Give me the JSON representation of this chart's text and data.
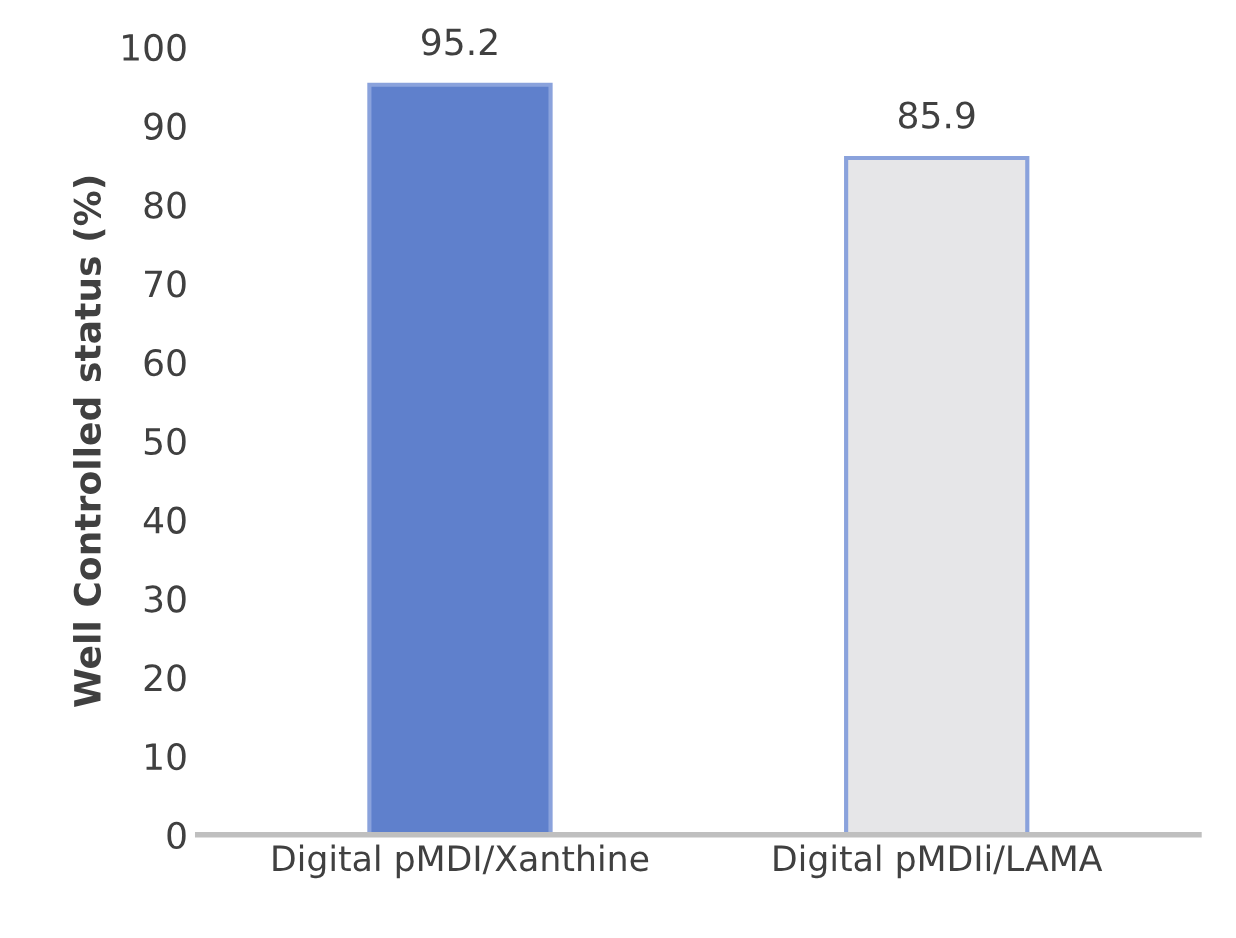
{
  "chart_data": {
    "type": "bar",
    "ylabel": "Well Controlled status (%)",
    "categories": [
      "Digital pMDI/Xanthine",
      "Digital pMDIi/LAMA"
    ],
    "values": [
      95.2,
      85.9
    ],
    "colors": [
      "#5f80cc",
      "#e6e6e8"
    ],
    "ylim": [
      0,
      100
    ],
    "yticks": [
      0,
      10,
      20,
      30,
      40,
      50,
      60,
      70,
      80,
      90,
      100
    ],
    "data_labels": true,
    "grid": false,
    "legend": false
  }
}
